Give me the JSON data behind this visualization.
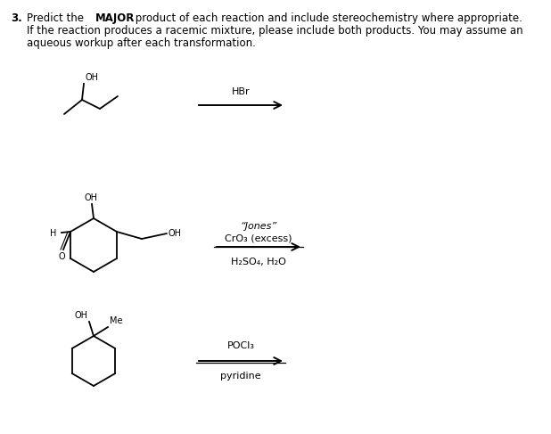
{
  "background_color": "#ffffff",
  "line1a": "3.",
  "line1b": "Predict the ",
  "line1c": "MAJOR",
  "line1d": " product of each reaction and include stereochemistry where appropriate.",
  "line2": "If the reaction produces a racemic mixture, please include both products. You may assume an",
  "line3": "aqueous workup after each transformation.",
  "reaction1_reagent": "HBr",
  "reaction2_line1": "“Jones”",
  "reaction2_line2": "CrO₃ (excess)",
  "reaction2_line3": "H₂SO₄, H₂O",
  "reaction3_line1": "POCl₃",
  "reaction3_line2": "pyridine",
  "font_size_body": 8.5,
  "font_size_reagent": 8.0,
  "font_size_mol": 7.0
}
